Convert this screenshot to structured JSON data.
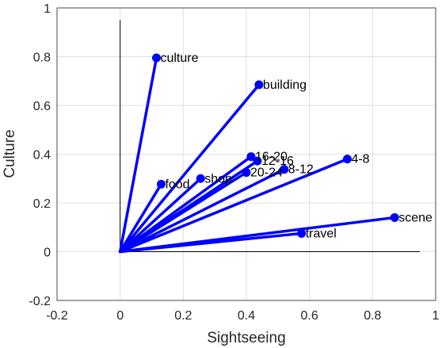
{
  "chart_data": {
    "type": "scatter",
    "title": "",
    "xlabel": "Sightseeing",
    "ylabel": "Culture",
    "xlim": [
      -0.2,
      1
    ],
    "ylim": [
      -0.2,
      1
    ],
    "xticks": [
      -0.2,
      0,
      0.2,
      0.4,
      0.6,
      0.8,
      1
    ],
    "yticks": [
      -0.2,
      0,
      0.2,
      0.4,
      0.6,
      0.8,
      1
    ],
    "xtick_labels": [
      "-0.2",
      "0",
      "0.2",
      "0.4",
      "0.6",
      "0.8",
      "1"
    ],
    "ytick_labels": [
      "-0.2",
      "0",
      "0.2",
      "0.4",
      "0.6",
      "0.8",
      "1"
    ],
    "grid": true,
    "legend": "none",
    "origin": [
      0,
      0
    ],
    "series_color": "#0000ff",
    "points": [
      {
        "label": "culture",
        "x": 0.115,
        "y": 0.795
      },
      {
        "label": "building",
        "x": 0.44,
        "y": 0.685
      },
      {
        "label": "16-20",
        "x": 0.415,
        "y": 0.39
      },
      {
        "label": "12-16",
        "x": 0.435,
        "y": 0.372
      },
      {
        "label": "8-12",
        "x": 0.52,
        "y": 0.338
      },
      {
        "label": "20-24",
        "x": 0.4,
        "y": 0.325
      },
      {
        "label": "4-8",
        "x": 0.72,
        "y": 0.38
      },
      {
        "label": "shop",
        "x": 0.255,
        "y": 0.3
      },
      {
        "label": "food",
        "x": 0.13,
        "y": 0.277
      },
      {
        "label": "scene",
        "x": 0.87,
        "y": 0.14
      },
      {
        "label": "travel",
        "x": 0.575,
        "y": 0.075
      }
    ]
  }
}
